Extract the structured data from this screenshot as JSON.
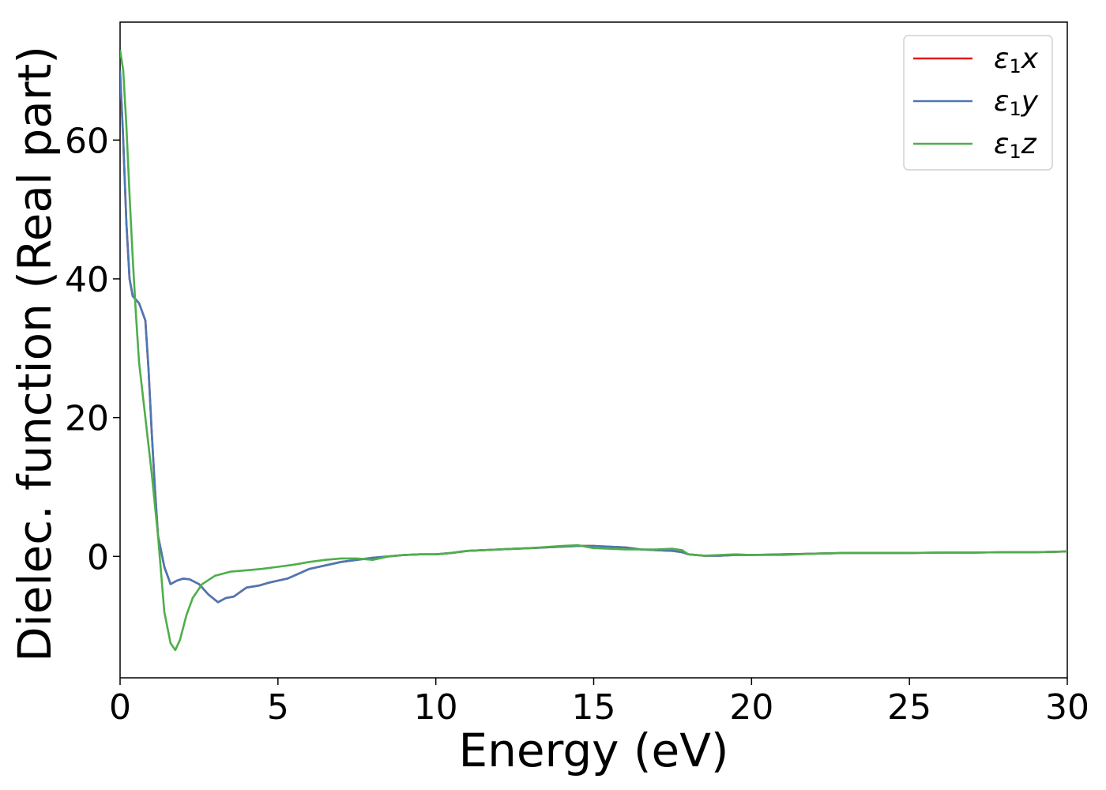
{
  "chart_data": {
    "type": "line",
    "xlabel": "Energy (eV)",
    "ylabel": "Dielec. function (Real part)",
    "xlim": [
      0,
      30
    ],
    "ylim": [
      -17.5,
      77
    ],
    "xticks": [
      0,
      5,
      10,
      15,
      20,
      25,
      30
    ],
    "yticks": [
      0,
      20,
      40,
      60
    ],
    "grid": false,
    "legend_position": "top-right",
    "series": [
      {
        "name": "ε1x",
        "legend": {
          "symbol": "ε",
          "sub": "1",
          "axis": "x"
        },
        "color": "#e41a1c",
        "x": [
          0.0,
          0.1,
          0.2,
          0.3,
          0.4,
          0.5,
          0.6,
          0.8,
          0.9,
          1.0,
          1.1,
          1.2,
          1.4,
          1.6,
          1.8,
          2.0,
          2.2,
          2.5,
          2.8,
          3.1,
          3.35,
          3.6,
          4.0,
          4.4,
          4.7,
          5.0,
          5.3,
          6.0,
          7.0,
          7.5,
          8.0,
          8.5,
          9.0,
          9.5,
          10.0,
          10.5,
          11.0,
          11.5,
          12.0,
          13.0,
          14.0,
          14.5,
          15.0,
          15.5,
          16.0,
          16.5,
          17.0,
          17.5,
          17.8,
          18.0,
          18.5,
          19.0,
          19.5,
          20.0,
          21.0,
          22.0,
          23.0,
          24.0,
          25.0,
          26.0,
          27.0,
          28.0,
          29.0,
          30.0
        ],
        "y": [
          70,
          60,
          48,
          40,
          37.5,
          37,
          36.5,
          34,
          27,
          18,
          10,
          3,
          -1.5,
          -4,
          -3.5,
          -3.2,
          -3.3,
          -4,
          -5.5,
          -6.6,
          -6,
          -5.8,
          -4.5,
          -4.2,
          -3.8,
          -3.5,
          -3.2,
          -1.8,
          -0.8,
          -0.5,
          -0.2,
          0,
          0.2,
          0.3,
          0.3,
          0.5,
          0.8,
          0.9,
          1,
          1.2,
          1.4,
          1.5,
          1.5,
          1.4,
          1.3,
          1,
          0.9,
          0.8,
          0.6,
          0.3,
          0.1,
          0.1,
          0.2,
          0.2,
          0.3,
          0.4,
          0.5,
          0.5,
          0.5,
          0.55,
          0.55,
          0.6,
          0.6,
          0.7
        ]
      },
      {
        "name": "ε1y",
        "legend": {
          "symbol": "ε",
          "sub": "1",
          "axis": "y"
        },
        "color": "#4a78b4",
        "x": [
          0.0,
          0.1,
          0.2,
          0.3,
          0.4,
          0.5,
          0.6,
          0.8,
          0.9,
          1.0,
          1.1,
          1.2,
          1.4,
          1.6,
          1.8,
          2.0,
          2.2,
          2.5,
          2.8,
          3.1,
          3.35,
          3.6,
          4.0,
          4.4,
          4.7,
          5.0,
          5.3,
          6.0,
          7.0,
          7.5,
          8.0,
          8.5,
          9.0,
          9.5,
          10.0,
          10.5,
          11.0,
          11.5,
          12.0,
          13.0,
          14.0,
          14.5,
          15.0,
          15.5,
          16.0,
          16.5,
          17.0,
          17.5,
          17.8,
          18.0,
          18.5,
          19.0,
          19.5,
          20.0,
          21.0,
          22.0,
          23.0,
          24.0,
          25.0,
          26.0,
          27.0,
          28.0,
          29.0,
          30.0
        ],
        "y": [
          70,
          60,
          48,
          40,
          37.5,
          37,
          36.5,
          34,
          27,
          18,
          10,
          3,
          -1.5,
          -4,
          -3.5,
          -3.2,
          -3.3,
          -4,
          -5.5,
          -6.6,
          -6,
          -5.8,
          -4.5,
          -4.2,
          -3.8,
          -3.5,
          -3.2,
          -1.8,
          -0.8,
          -0.5,
          -0.2,
          0,
          0.2,
          0.3,
          0.3,
          0.5,
          0.8,
          0.9,
          1,
          1.2,
          1.4,
          1.5,
          1.5,
          1.4,
          1.3,
          1,
          0.9,
          0.8,
          0.6,
          0.3,
          0.1,
          0.1,
          0.2,
          0.2,
          0.3,
          0.4,
          0.5,
          0.5,
          0.5,
          0.55,
          0.55,
          0.6,
          0.6,
          0.7
        ]
      },
      {
        "name": "ε1z",
        "legend": {
          "symbol": "ε",
          "sub": "1",
          "axis": "z"
        },
        "color": "#4daf4a",
        "x": [
          0.0,
          0.1,
          0.2,
          0.3,
          0.4,
          0.5,
          0.6,
          0.8,
          1.0,
          1.2,
          1.4,
          1.6,
          1.75,
          1.9,
          2.1,
          2.3,
          2.6,
          3.0,
          3.5,
          4.0,
          4.5,
          5.0,
          5.5,
          6.0,
          6.5,
          7.0,
          7.5,
          8.0,
          8.5,
          9.0,
          9.5,
          10.0,
          10.5,
          11.0,
          12.0,
          13.0,
          14.0,
          14.5,
          15.0,
          15.5,
          16.0,
          16.5,
          17.0,
          17.5,
          17.8,
          18.0,
          18.5,
          19.0,
          19.5,
          20.0,
          21.0,
          22.0,
          23.0,
          24.0,
          25.0,
          26.0,
          27.0,
          28.0,
          29.0,
          30.0
        ],
        "y": [
          73,
          70,
          62,
          52,
          43,
          35,
          28,
          20,
          12,
          3,
          -8,
          -12.5,
          -13.5,
          -12,
          -8.5,
          -6,
          -4,
          -2.8,
          -2.2,
          -2,
          -1.8,
          -1.5,
          -1.2,
          -0.8,
          -0.5,
          -0.3,
          -0.3,
          -0.5,
          0,
          0.2,
          0.3,
          0.3,
          0.5,
          0.8,
          1,
          1.2,
          1.5,
          1.6,
          1.2,
          1.1,
          1,
          1,
          1,
          1.1,
          0.9,
          0.3,
          0.1,
          0.2,
          0.3,
          0.2,
          0.2,
          0.4,
          0.5,
          0.5,
          0.5,
          0.55,
          0.55,
          0.6,
          0.6,
          0.7
        ]
      }
    ]
  }
}
